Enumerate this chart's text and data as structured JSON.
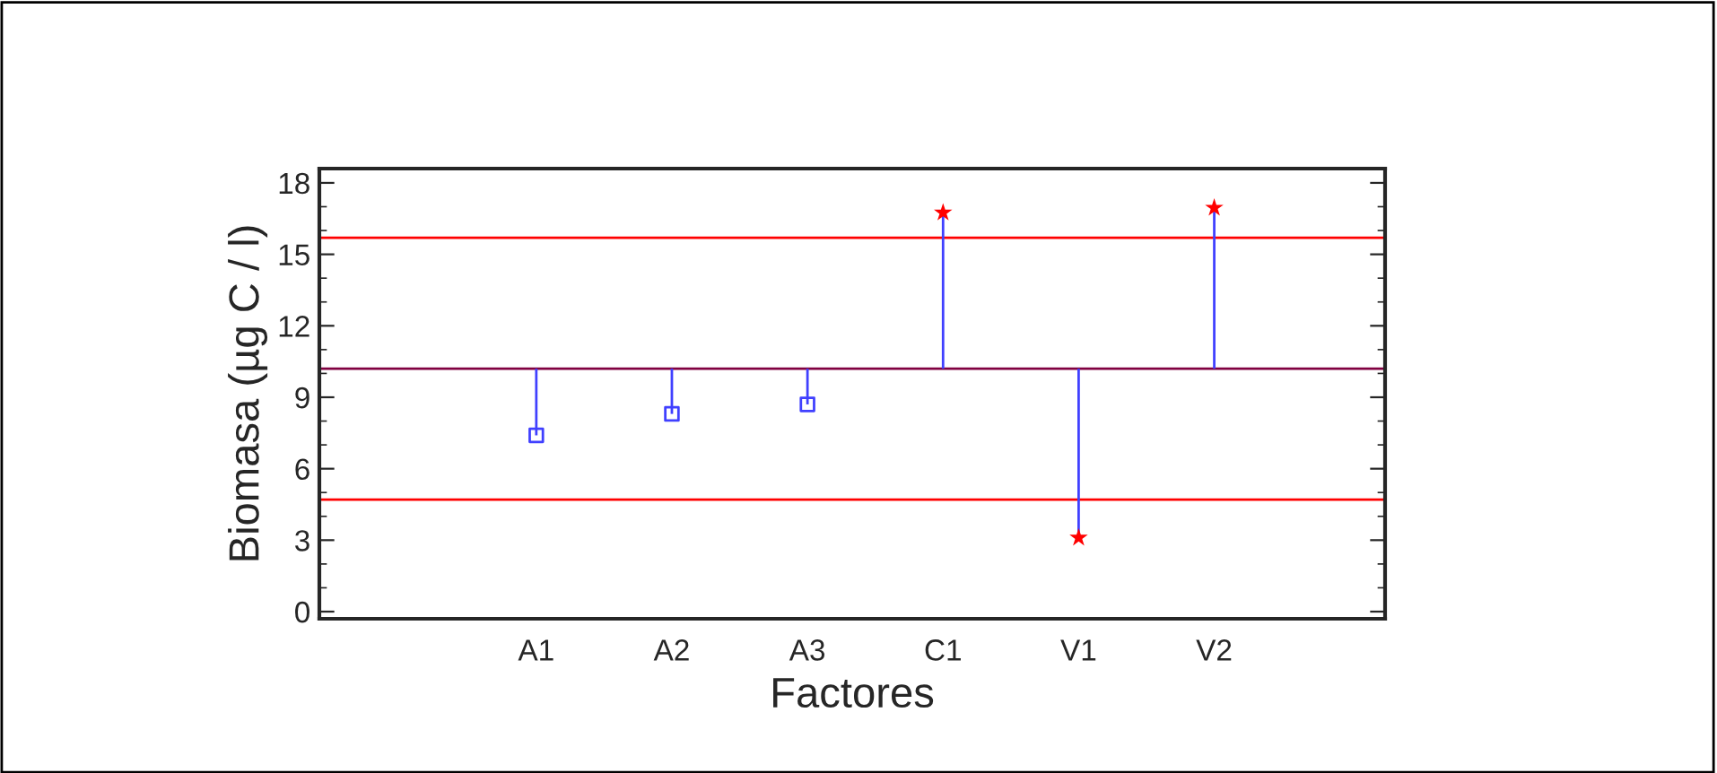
{
  "chart_data": {
    "type": "scatter",
    "xlabel": "Factores",
    "ylabel": "Biomasa (µg C / l)",
    "categories": [
      "A1",
      "A2",
      "A3",
      "C1",
      "V1",
      "V2"
    ],
    "series": [
      {
        "color": "#4040ff",
        "marker": "square",
        "values": [
          7.4,
          8.3,
          8.7,
          null,
          null,
          null
        ],
        "errors": [
          [
            7.4,
            10.2
          ],
          [
            8.3,
            10.2
          ],
          [
            8.7,
            10.2
          ],
          null,
          null,
          null
        ]
      },
      {
        "color": "#4040ff",
        "colors": [
          null,
          null,
          null,
          "#ff0000",
          "#ff0000",
          "#ff0000"
        ],
        "marker": "star",
        "values": [
          null,
          null,
          null,
          16.75,
          3.1,
          16.95
        ],
        "errors": [
          null,
          null,
          null,
          [
            10.2,
            16.75
          ],
          [
            3.1,
            10.2
          ],
          [
            10.2,
            16.95
          ]
        ]
      }
    ],
    "ylim": [
      -0.3,
      18.6
    ],
    "yticks": [
      0,
      3,
      6,
      9,
      12,
      15,
      18
    ],
    "ref_lines": [
      {
        "axis": "y",
        "value": 15.7,
        "color": "#ff0000"
      },
      {
        "axis": "y",
        "value": 10.2,
        "color": "#800040"
      },
      {
        "axis": "y",
        "value": 4.7,
        "color": "#ff0000"
      }
    ],
    "grid": false,
    "legend": false
  }
}
